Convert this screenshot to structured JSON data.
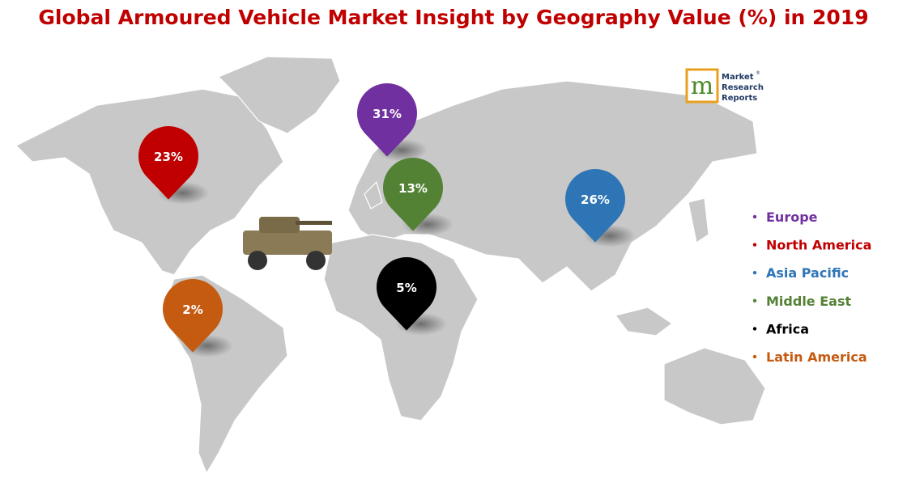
{
  "title": "Global Armoured Vehicle Market Insight by Geography Value (%) in 2019",
  "logo": {
    "mark": "m",
    "lines": [
      "Market",
      "Research",
      "Reports"
    ],
    "registered": "®"
  },
  "pins": [
    {
      "label": "31%",
      "color": "#7030a0"
    },
    {
      "label": "23%",
      "color": "#c00000"
    },
    {
      "label": "13%",
      "color": "#548235"
    },
    {
      "label": "26%",
      "color": "#2e75b6"
    },
    {
      "label": "5%",
      "color": "#000000"
    },
    {
      "label": "2%",
      "color": "#c55a11"
    }
  ],
  "legend": [
    {
      "name": "Europe",
      "color": "#7030a0"
    },
    {
      "name": "North America",
      "color": "#c00000"
    },
    {
      "name": "Asia Pacific",
      "color": "#2e75b6"
    },
    {
      "name": "Middle East",
      "color": "#548235"
    },
    {
      "name": "Africa",
      "color": "#000000"
    },
    {
      "name": "Latin America",
      "color": "#c55a11"
    }
  ]
}
